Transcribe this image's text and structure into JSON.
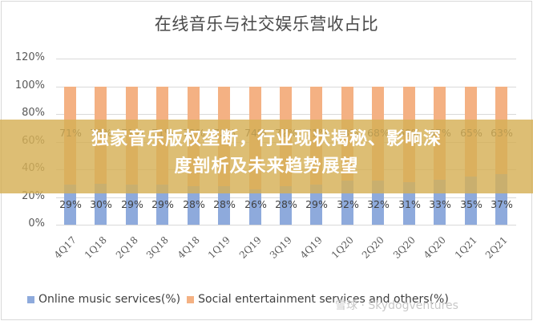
{
  "chart": {
    "title": "在线音乐与社交娱乐营收占比",
    "y_ticks": [
      "120%",
      "100%",
      "80%",
      "60%",
      "40%",
      "20%",
      "0%"
    ],
    "legend": [
      {
        "label": "Online music services(%)",
        "color": "#8eaadc"
      },
      {
        "label": "Social entertainment services and others(%)",
        "color": "#f4b183"
      }
    ]
  },
  "banner": {
    "line1": "独家音乐版权垄断，行业现状揭秘、影响深",
    "line2": "度剖析及未来趋势展望"
  },
  "watermark": "雪球 · Skydogventures",
  "chart_data": {
    "type": "bar",
    "stacked": true,
    "title": "在线音乐与社交娱乐营收占比",
    "categories": [
      "4Q17",
      "1Q18",
      "2Q18",
      "3Q18",
      "4Q18",
      "1Q19",
      "2Q19",
      "3Q19",
      "4Q19",
      "1Q20",
      "2Q20",
      "3Q20",
      "4Q20",
      "1Q21",
      "2Q21"
    ],
    "series": [
      {
        "name": "Online music services(%)",
        "color": "#8eaadc",
        "values": [
          29,
          30,
          29,
          29,
          28,
          28,
          26,
          28,
          29,
          32,
          32,
          31,
          33,
          35,
          37
        ]
      },
      {
        "name": "Social entertainment services and others(%)",
        "color": "#f4b183",
        "values": [
          71,
          70,
          71,
          71,
          72,
          72,
          74,
          72,
          71,
          68,
          68,
          69,
          67,
          65,
          63
        ]
      }
    ],
    "xlabel": "",
    "ylabel": "",
    "ylim": [
      0,
      120
    ],
    "yticks": [
      0,
      20,
      40,
      60,
      80,
      100,
      120
    ],
    "grid": true,
    "legend_position": "bottom"
  }
}
